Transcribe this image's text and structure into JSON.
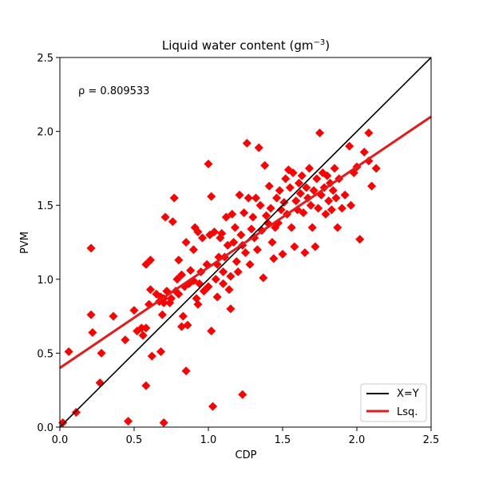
{
  "chart_data": {
    "type": "scatter",
    "title": "Liquid water content (gm",
    "title_superscript": "−3",
    "title_suffix": ")",
    "xlabel": "CDP",
    "ylabel": "PVM",
    "xlim": [
      0,
      2.5
    ],
    "ylim": [
      0,
      2.5
    ],
    "xticks": [
      "0.0",
      "0.5",
      "1.0",
      "1.5",
      "2.0",
      "2.5"
    ],
    "yticks": [
      "0.0",
      "0.5",
      "1.0",
      "1.5",
      "2.0",
      "2.5"
    ],
    "annotation": "ρ = 0.809533",
    "colors": {
      "points": "#ff0000",
      "fit": "#e41a1c",
      "identity": "#000000"
    },
    "legend": [
      {
        "label": "X=Y",
        "color": "#000000"
      },
      {
        "label": "Lsq.",
        "color": "#e41a1c"
      }
    ],
    "lines": {
      "identity": {
        "name": "X=Y",
        "x": [
          0,
          2.5
        ],
        "y": [
          0,
          2.5
        ]
      },
      "fit": {
        "name": "Lsq.",
        "x": [
          0,
          2.5
        ],
        "y": [
          0.4,
          2.1
        ]
      }
    },
    "series": [
      {
        "name": "data",
        "marker": "diamond",
        "points": [
          [
            0.02,
            0.03
          ],
          [
            0.06,
            0.51
          ],
          [
            0.11,
            0.1
          ],
          [
            0.21,
            1.21
          ],
          [
            0.21,
            0.76
          ],
          [
            0.22,
            0.64
          ],
          [
            0.27,
            0.3
          ],
          [
            0.28,
            0.5
          ],
          [
            0.36,
            0.75
          ],
          [
            0.44,
            0.59
          ],
          [
            0.46,
            0.04
          ],
          [
            0.5,
            0.79
          ],
          [
            0.52,
            0.65
          ],
          [
            0.55,
            0.67
          ],
          [
            0.56,
            0.62
          ],
          [
            0.58,
            0.28
          ],
          [
            0.58,
            0.67
          ],
          [
            0.58,
            1.1
          ],
          [
            0.6,
            0.83
          ],
          [
            0.61,
            0.93
          ],
          [
            0.61,
            1.13
          ],
          [
            0.62,
            0.48
          ],
          [
            0.65,
            0.9
          ],
          [
            0.67,
            0.85
          ],
          [
            0.68,
            0.51
          ],
          [
            0.68,
            0.88
          ],
          [
            0.69,
            0.76
          ],
          [
            0.7,
            0.87
          ],
          [
            0.7,
            0.84
          ],
          [
            0.7,
            0.03
          ],
          [
            0.71,
            1.42
          ],
          [
            0.72,
            0.92
          ],
          [
            0.74,
            0.84
          ],
          [
            0.75,
            0.87
          ],
          [
            0.76,
            1.39
          ],
          [
            0.77,
            1.55
          ],
          [
            0.78,
            0.92
          ],
          [
            0.79,
            1.0
          ],
          [
            0.8,
            1.13
          ],
          [
            0.8,
            0.9
          ],
          [
            0.82,
            1.03
          ],
          [
            0.82,
            0.68
          ],
          [
            0.83,
            0.75
          ],
          [
            0.84,
            0.95
          ],
          [
            0.85,
            0.38
          ],
          [
            0.85,
            1.25
          ],
          [
            0.86,
            0.69
          ],
          [
            0.87,
            0.97
          ],
          [
            0.88,
            1.06
          ],
          [
            0.9,
            1.2
          ],
          [
            0.9,
            0.99
          ],
          [
            0.91,
            1.35
          ],
          [
            0.92,
            0.87
          ],
          [
            0.93,
            1.32
          ],
          [
            0.93,
            0.83
          ],
          [
            0.94,
            0.97
          ],
          [
            0.95,
            1.05
          ],
          [
            0.96,
            1.28
          ],
          [
            0.97,
            0.92
          ],
          [
            0.98,
            0.93
          ],
          [
            0.99,
            1.1
          ],
          [
            1.0,
            1.78
          ],
          [
            1.0,
            0.95
          ],
          [
            1.01,
            1.3
          ],
          [
            1.02,
            0.65
          ],
          [
            1.02,
            1.56
          ],
          [
            1.03,
            0.14
          ],
          [
            1.04,
            1.32
          ],
          [
            1.05,
            1.0
          ],
          [
            1.06,
            1.1
          ],
          [
            1.06,
            0.88
          ],
          [
            1.07,
            1.15
          ],
          [
            1.08,
            1.28
          ],
          [
            1.09,
            1.31
          ],
          [
            1.1,
            0.97
          ],
          [
            1.1,
            1.05
          ],
          [
            1.11,
            1.15
          ],
          [
            1.12,
            1.42
          ],
          [
            1.13,
            1.23
          ],
          [
            1.14,
            0.93
          ],
          [
            1.15,
            1.02
          ],
          [
            1.15,
            0.8
          ],
          [
            1.16,
            1.44
          ],
          [
            1.17,
            1.25
          ],
          [
            1.18,
            1.35
          ],
          [
            1.19,
            1.12
          ],
          [
            1.2,
            1.05
          ],
          [
            1.21,
            1.57
          ],
          [
            1.22,
            1.3
          ],
          [
            1.23,
            0.22
          ],
          [
            1.23,
            1.23
          ],
          [
            1.24,
            1.45
          ],
          [
            1.25,
            1.18
          ],
          [
            1.26,
            1.92
          ],
          [
            1.27,
            1.55
          ],
          [
            1.28,
            1.1
          ],
          [
            1.29,
            1.34
          ],
          [
            1.3,
            1.42
          ],
          [
            1.31,
            1.28
          ],
          [
            1.32,
            1.55
          ],
          [
            1.33,
            1.2
          ],
          [
            1.34,
            1.89
          ],
          [
            1.35,
            1.5
          ],
          [
            1.36,
            1.33
          ],
          [
            1.37,
            1.01
          ],
          [
            1.38,
            1.77
          ],
          [
            1.39,
            1.43
          ],
          [
            1.4,
            1.38
          ],
          [
            1.41,
            1.63
          ],
          [
            1.42,
            1.48
          ],
          [
            1.43,
            1.25
          ],
          [
            1.44,
            1.14
          ],
          [
            1.45,
            1.35
          ],
          [
            1.46,
            1.55
          ],
          [
            1.47,
            1.38
          ],
          [
            1.48,
            1.6
          ],
          [
            1.49,
            1.47
          ],
          [
            1.5,
            1.17
          ],
          [
            1.51,
            1.52
          ],
          [
            1.52,
            1.68
          ],
          [
            1.53,
            1.44
          ],
          [
            1.54,
            1.74
          ],
          [
            1.55,
            1.62
          ],
          [
            1.56,
            1.35
          ],
          [
            1.57,
            1.72
          ],
          [
            1.58,
            1.22
          ],
          [
            1.59,
            1.53
          ],
          [
            1.6,
            1.47
          ],
          [
            1.61,
            1.65
          ],
          [
            1.62,
            1.58
          ],
          [
            1.63,
            1.7
          ],
          [
            1.64,
            1.45
          ],
          [
            1.65,
            1.18
          ],
          [
            1.66,
            1.62
          ],
          [
            1.67,
            1.55
          ],
          [
            1.68,
            1.75
          ],
          [
            1.69,
            1.5
          ],
          [
            1.7,
            1.35
          ],
          [
            1.71,
            1.6
          ],
          [
            1.72,
            1.22
          ],
          [
            1.73,
            1.68
          ],
          [
            1.74,
            1.48
          ],
          [
            1.75,
            1.99
          ],
          [
            1.76,
            1.57
          ],
          [
            1.77,
            1.72
          ],
          [
            1.78,
            1.62
          ],
          [
            1.79,
            1.44
          ],
          [
            1.8,
            1.7
          ],
          [
            1.81,
            1.53
          ],
          [
            1.82,
            1.65
          ],
          [
            1.83,
            1.47
          ],
          [
            1.84,
            1.6
          ],
          [
            1.85,
            1.75
          ],
          [
            1.86,
            1.55
          ],
          [
            1.87,
            1.35
          ],
          [
            1.88,
            1.68
          ],
          [
            1.9,
            1.48
          ],
          [
            1.92,
            1.57
          ],
          [
            1.95,
            1.9
          ],
          [
            1.96,
            1.5
          ],
          [
            1.98,
            1.72
          ],
          [
            2.0,
            1.76
          ],
          [
            2.02,
            1.27
          ],
          [
            2.05,
            1.86
          ],
          [
            2.08,
            1.99
          ],
          [
            2.1,
            1.63
          ],
          [
            2.13,
            1.75
          ],
          [
            2.08,
            1.8
          ]
        ]
      }
    ]
  }
}
